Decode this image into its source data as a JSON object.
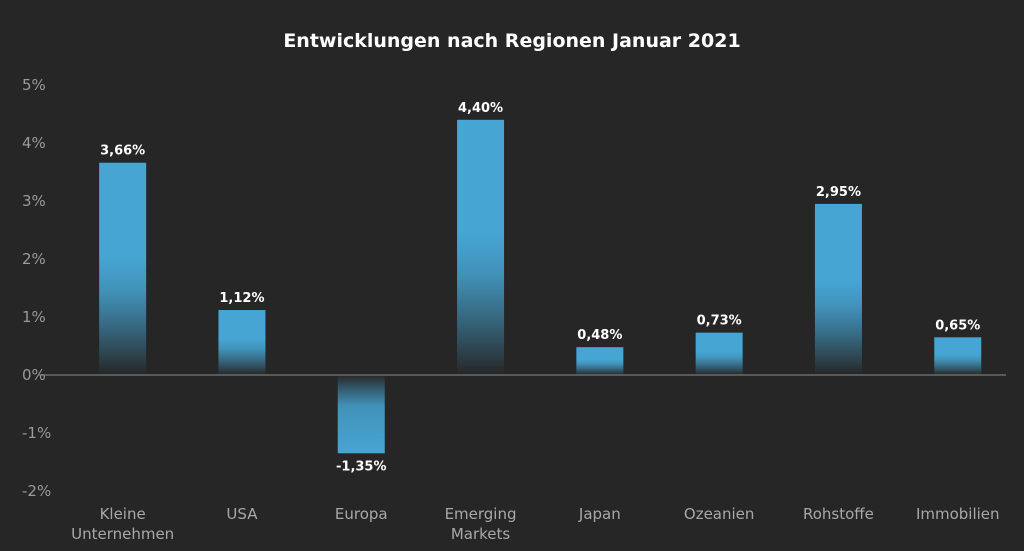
{
  "chart_data": {
    "type": "bar",
    "title": "Entwicklungen nach Regionen Januar 2021",
    "categories": [
      [
        "Kleine",
        "Unternehmen"
      ],
      [
        "USA"
      ],
      [
        "Europa"
      ],
      [
        "Emerging",
        "Markets"
      ],
      [
        "Japan"
      ],
      [
        "Ozeanien"
      ],
      [
        "Rohstoffe"
      ],
      [
        "Immobilien"
      ]
    ],
    "values": [
      3.66,
      1.12,
      -1.35,
      4.4,
      0.48,
      0.73,
      2.95,
      0.65
    ],
    "value_labels": [
      "3,66%",
      "1,12%",
      "-1,35%",
      "4,40%",
      "0,48%",
      "0,73%",
      "2,95%",
      "0,65%"
    ],
    "ylim": [
      -2,
      5
    ],
    "yticks": [
      5,
      4,
      3,
      2,
      1,
      0,
      -1,
      -2
    ],
    "ytick_labels": [
      "5%",
      "4%",
      "3%",
      "2%",
      "1%",
      "0%",
      "-1%",
      "-2%"
    ],
    "xlabel": "",
    "ylabel": "",
    "grid": false,
    "legend": "none",
    "colors": {
      "background": "#262626",
      "bar": "#46a5d3",
      "bar_dark": "#262626",
      "axis": "#8c8c8c",
      "tick_text": "#9a9a9a",
      "title_text": "#ffffff",
      "label_text": "#ffffff"
    }
  }
}
